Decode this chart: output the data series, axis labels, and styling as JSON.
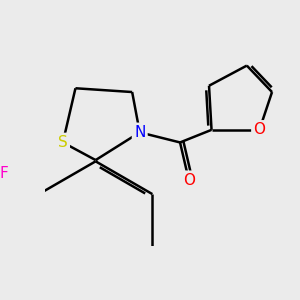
{
  "background_color": "#ebebeb",
  "atom_colors": {
    "S": "#cccc00",
    "N": "#0000ff",
    "O": "#ff0000",
    "F": "#ff00cc",
    "C": "#000000"
  },
  "bond_color": "#000000",
  "bond_width": 1.8,
  "dbo": 0.055
}
